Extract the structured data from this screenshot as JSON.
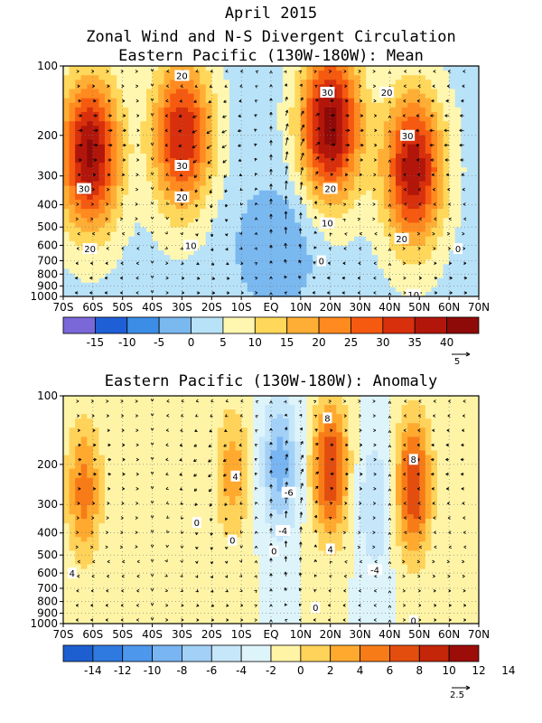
{
  "titles": {
    "line1": "April 2015",
    "line2": "Zonal Wind and N-S Divergent Circulation",
    "line3": "Eastern Pacific (130W-180W): Mean",
    "anomaly_title": "Eastern Pacific (130W-180W): Anomaly"
  },
  "colors": {
    "mean_scale": [
      "#7b68d8",
      "#1f5fd6",
      "#3c8de6",
      "#7ab8f0",
      "#b8e2f8",
      "#fff7b0",
      "#ffd75a",
      "#ffae35",
      "#ff8a20",
      "#f55a10",
      "#d8300c",
      "#b2160a",
      "#8e0a08"
    ],
    "anom_scale": [
      "#1d5fd0",
      "#2f7ae0",
      "#4d97ec",
      "#78b5f2",
      "#a2d0f7",
      "#c6e6fa",
      "#def4fb",
      "#fff4a6",
      "#ffd25a",
      "#ffaa2e",
      "#f77c18",
      "#e34d0e",
      "#c4260a",
      "#9c0c08"
    ]
  },
  "chart_data": [
    {
      "type": "heatmap",
      "panel": "mean",
      "title": "Eastern Pacific (130W-180W): Mean",
      "x_tick_labels": [
        "70S",
        "60S",
        "50S",
        "40S",
        "30S",
        "20S",
        "10S",
        "EQ",
        "10N",
        "20N",
        "30N",
        "40N",
        "50N",
        "60N",
        "70N"
      ],
      "y_tick_labels": [
        "100",
        "200",
        "300",
        "400",
        "500",
        "600",
        "700",
        "800",
        "900",
        "1000"
      ],
      "y_scale": "log-pressure",
      "grid": true,
      "field_maxima": [
        {
          "lat": -61,
          "p": 240,
          "value": 38
        },
        {
          "lat": -30,
          "p": 200,
          "value": 32
        },
        {
          "lat": 20,
          "p": 180,
          "value": 40
        },
        {
          "lat": 48,
          "p": 280,
          "value": 36
        }
      ],
      "contour_labels": [
        {
          "text": "20",
          "lat": -30,
          "p": 110
        },
        {
          "text": "30",
          "lat": -30,
          "p": 270
        },
        {
          "text": "20",
          "lat": -30,
          "p": 370
        },
        {
          "text": "30",
          "lat": -63,
          "p": 340
        },
        {
          "text": "20",
          "lat": -61,
          "p": 620
        },
        {
          "text": "10",
          "lat": -27,
          "p": 600
        },
        {
          "text": "30",
          "lat": 19,
          "p": 130
        },
        {
          "text": "20",
          "lat": 20,
          "p": 340
        },
        {
          "text": "10",
          "lat": 19,
          "p": 480
        },
        {
          "text": "0",
          "lat": 17,
          "p": 700
        },
        {
          "text": "20",
          "lat": 39,
          "p": 130
        },
        {
          "text": "30",
          "lat": 46,
          "p": 200
        },
        {
          "text": "20",
          "lat": 44,
          "p": 560
        },
        {
          "text": "0",
          "lat": 63,
          "p": 620
        },
        {
          "text": "10",
          "lat": 48,
          "p": 980
        }
      ],
      "colorbar": {
        "labels": [
          "-15",
          "-10",
          "-5",
          "0",
          "5",
          "10",
          "15",
          "20",
          "25",
          "30",
          "35",
          "40"
        ],
        "vector_ref": "5"
      }
    },
    {
      "type": "heatmap",
      "panel": "anomaly",
      "title": "Eastern Pacific (130W-180W): Anomaly",
      "x_tick_labels": [
        "70S",
        "60S",
        "50S",
        "40S",
        "30S",
        "20S",
        "10S",
        "EQ",
        "10N",
        "20N",
        "30N",
        "40N",
        "50N",
        "60N",
        "70N"
      ],
      "y_tick_labels": [
        "100",
        "200",
        "300",
        "400",
        "500",
        "600",
        "700",
        "800",
        "900",
        "1000"
      ],
      "y_scale": "log-pressure",
      "grid": true,
      "field_extrema": [
        {
          "lat": -63,
          "p": 260,
          "value": 7
        },
        {
          "lat": -13,
          "p": 220,
          "value": 5
        },
        {
          "lat": 3,
          "p": 200,
          "value": -7
        },
        {
          "lat": 20,
          "p": 210,
          "value": 10
        },
        {
          "lat": 48,
          "p": 250,
          "value": 10
        },
        {
          "lat": 35,
          "p": 300,
          "value": -4
        }
      ],
      "contour_labels": [
        {
          "text": "8",
          "lat": 19,
          "p": 125
        },
        {
          "text": "4",
          "lat": -12,
          "p": 225
        },
        {
          "text": "-6",
          "lat": 6,
          "p": 265
        },
        {
          "text": "4",
          "lat": 20,
          "p": 470
        },
        {
          "text": "0",
          "lat": -25,
          "p": 360
        },
        {
          "text": "0",
          "lat": -13,
          "p": 430
        },
        {
          "text": "-4",
          "lat": 4,
          "p": 390
        },
        {
          "text": "0",
          "lat": 1,
          "p": 480
        },
        {
          "text": "8",
          "lat": 48,
          "p": 190
        },
        {
          "text": "-4",
          "lat": 35,
          "p": 580
        },
        {
          "text": "4",
          "lat": -67,
          "p": 600
        },
        {
          "text": "0",
          "lat": 15,
          "p": 850
        },
        {
          "text": "0",
          "lat": 48,
          "p": 970
        }
      ],
      "colorbar": {
        "labels": [
          "-14",
          "-12",
          "-10",
          "-8",
          "-6",
          "-4",
          "-2",
          "0",
          "2",
          "4",
          "6",
          "8",
          "10",
          "12",
          "14"
        ],
        "vector_ref": "2.5"
      }
    }
  ]
}
